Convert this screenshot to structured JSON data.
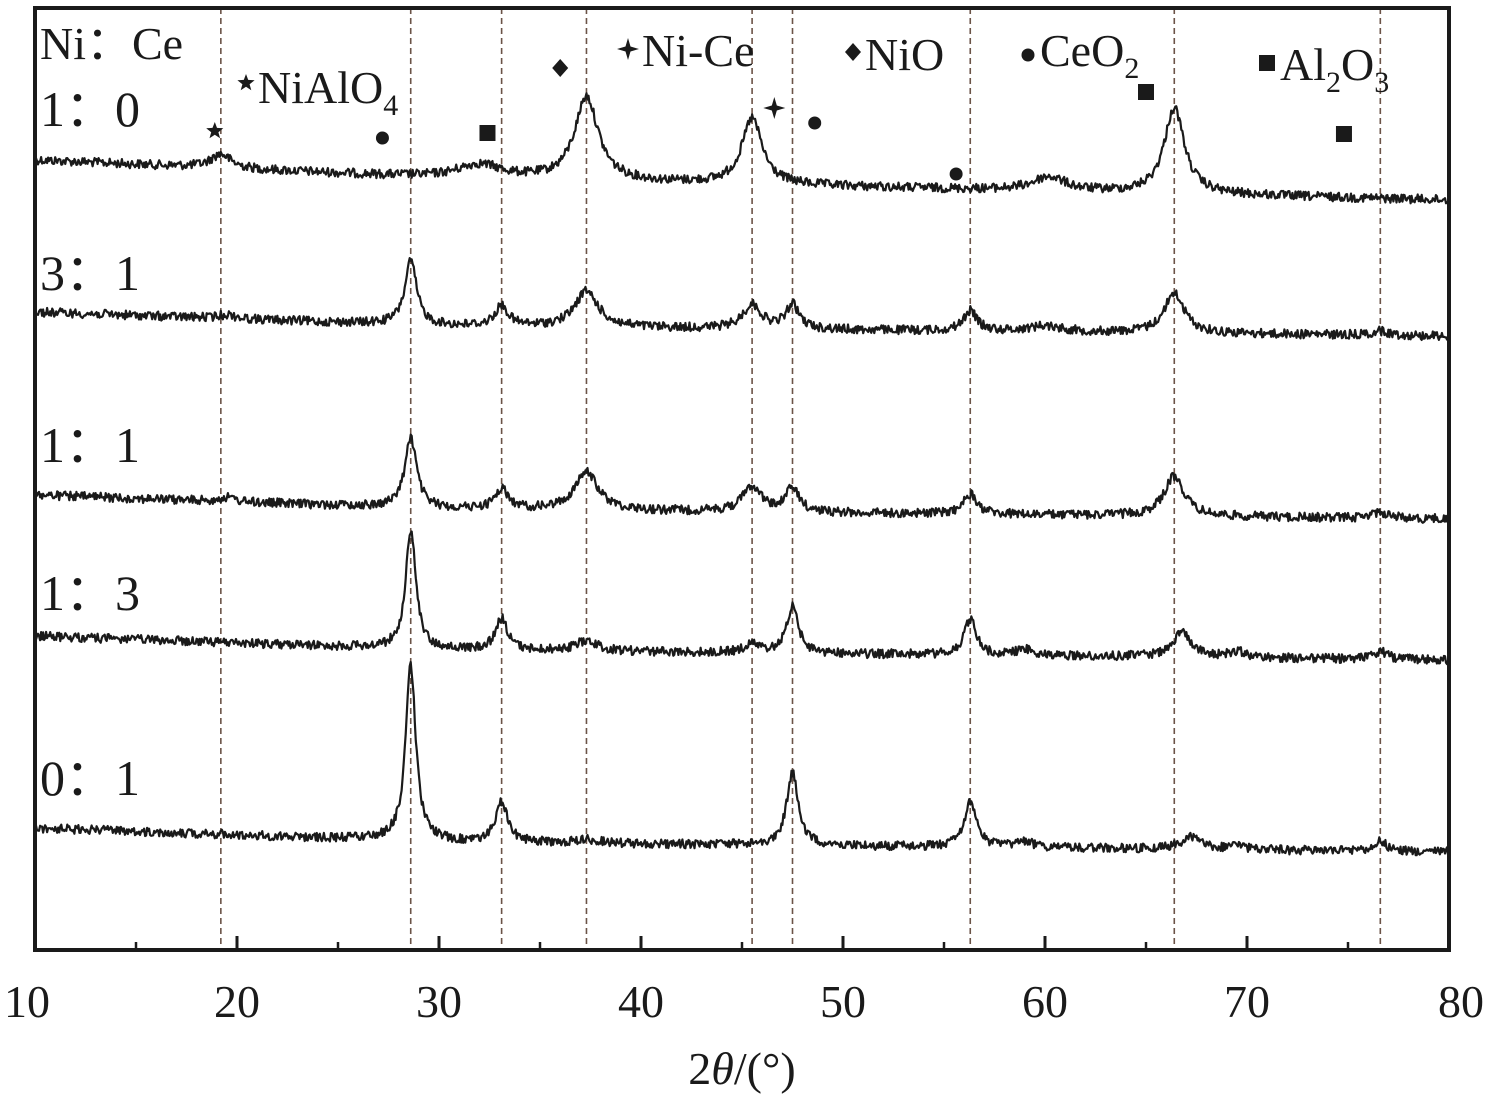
{
  "chart_data": {
    "type": "line",
    "xlabel_prefix": "2",
    "xlabel_theta": "θ",
    "xlabel_suffix": "/(°)",
    "xlim": [
      10,
      80
    ],
    "xticks": [
      10,
      20,
      30,
      40,
      50,
      60,
      70,
      80
    ],
    "grid": false,
    "header": "Ni：Ce",
    "reference_lines": [
      19.2,
      28.6,
      33.1,
      37.3,
      45.5,
      47.5,
      56.3,
      66.4,
      76.6
    ],
    "legend": [
      {
        "phase": "NiAlO",
        "sub": "4",
        "marker": "star"
      },
      {
        "phase": "Ni-Ce",
        "sub": "",
        "marker": "four-point-star"
      },
      {
        "phase": "NiO",
        "sub": "",
        "marker": "diamond"
      },
      {
        "phase": "CeO",
        "sub": "2",
        "marker": "circle"
      },
      {
        "phase": "Al",
        "sub": "2",
        "phase2": "O",
        "sub2": "3",
        "marker": "square"
      }
    ],
    "series": [
      {
        "name": "1：0",
        "baseline": [
          [
            10,
            0.0
          ],
          [
            30,
            0.09
          ],
          [
            80,
            0.2
          ]
        ],
        "peaks": [
          [
            19.2,
            0.07,
            0.6
          ],
          [
            32.0,
            0.07,
            1.4
          ],
          [
            37.3,
            0.42,
            0.7
          ],
          [
            45.5,
            0.33,
            0.6
          ],
          [
            60.2,
            0.07,
            1.0
          ],
          [
            66.4,
            0.43,
            0.6
          ]
        ]
      },
      {
        "name": "3：1",
        "baseline": [
          [
            10,
            0.0
          ],
          [
            30,
            0.07
          ],
          [
            80,
            0.12
          ]
        ],
        "peaks": [
          [
            19.5,
            0.02,
            0.5
          ],
          [
            28.6,
            0.32,
            0.35
          ],
          [
            33.1,
            0.1,
            0.4
          ],
          [
            37.3,
            0.18,
            0.7
          ],
          [
            45.5,
            0.12,
            0.55
          ],
          [
            47.5,
            0.12,
            0.4
          ],
          [
            56.3,
            0.1,
            0.4
          ],
          [
            60.0,
            0.03,
            1.0
          ],
          [
            66.4,
            0.2,
            0.6
          ],
          [
            76.6,
            0.02,
            0.5
          ]
        ]
      },
      {
        "name": "1：1",
        "baseline": [
          [
            10,
            0.0
          ],
          [
            30,
            0.07
          ],
          [
            80,
            0.12
          ]
        ],
        "peaks": [
          [
            19.5,
            0.02,
            0.5
          ],
          [
            28.6,
            0.35,
            0.35
          ],
          [
            33.1,
            0.1,
            0.4
          ],
          [
            37.3,
            0.19,
            0.7
          ],
          [
            45.5,
            0.13,
            0.55
          ],
          [
            47.5,
            0.12,
            0.4
          ],
          [
            56.3,
            0.1,
            0.4
          ],
          [
            66.4,
            0.2,
            0.6
          ],
          [
            76.6,
            0.03,
            0.5
          ]
        ]
      },
      {
        "name": "1：3",
        "baseline": [
          [
            10,
            0.0
          ],
          [
            30,
            0.07
          ],
          [
            80,
            0.12
          ]
        ],
        "peaks": [
          [
            28.6,
            0.6,
            0.3
          ],
          [
            33.1,
            0.16,
            0.35
          ],
          [
            37.3,
            0.05,
            0.7
          ],
          [
            45.5,
            0.04,
            0.5
          ],
          [
            47.5,
            0.23,
            0.35
          ],
          [
            56.3,
            0.18,
            0.35
          ],
          [
            59.0,
            0.03,
            0.5
          ],
          [
            66.8,
            0.12,
            0.6
          ],
          [
            69.5,
            0.03,
            0.5
          ],
          [
            76.6,
            0.04,
            0.4
          ]
        ]
      },
      {
        "name": "0：1",
        "baseline": [
          [
            10,
            0.0
          ],
          [
            30,
            0.07
          ],
          [
            80,
            0.12
          ]
        ],
        "peaks": [
          [
            28.6,
            0.88,
            0.3
          ],
          [
            33.1,
            0.2,
            0.35
          ],
          [
            37.3,
            0.02,
            0.7
          ],
          [
            47.5,
            0.36,
            0.35
          ],
          [
            56.3,
            0.23,
            0.35
          ],
          [
            59.0,
            0.03,
            0.5
          ],
          [
            67.2,
            0.06,
            0.6
          ],
          [
            69.5,
            0.02,
            0.5
          ],
          [
            76.6,
            0.05,
            0.4
          ]
        ]
      }
    ],
    "phase_markers": [
      {
        "marker": "star",
        "x": 18.9
      },
      {
        "marker": "circle",
        "x": 27.2
      },
      {
        "marker": "square",
        "x": 32.4
      },
      {
        "marker": "diamond",
        "x": 36.0
      },
      {
        "marker": "four-point-star",
        "x": 46.6
      },
      {
        "marker": "circle",
        "x": 48.6
      },
      {
        "marker": "circle",
        "x": 55.6
      },
      {
        "marker": "square",
        "x": 65.0
      },
      {
        "marker": "square",
        "x": 74.8
      }
    ]
  }
}
